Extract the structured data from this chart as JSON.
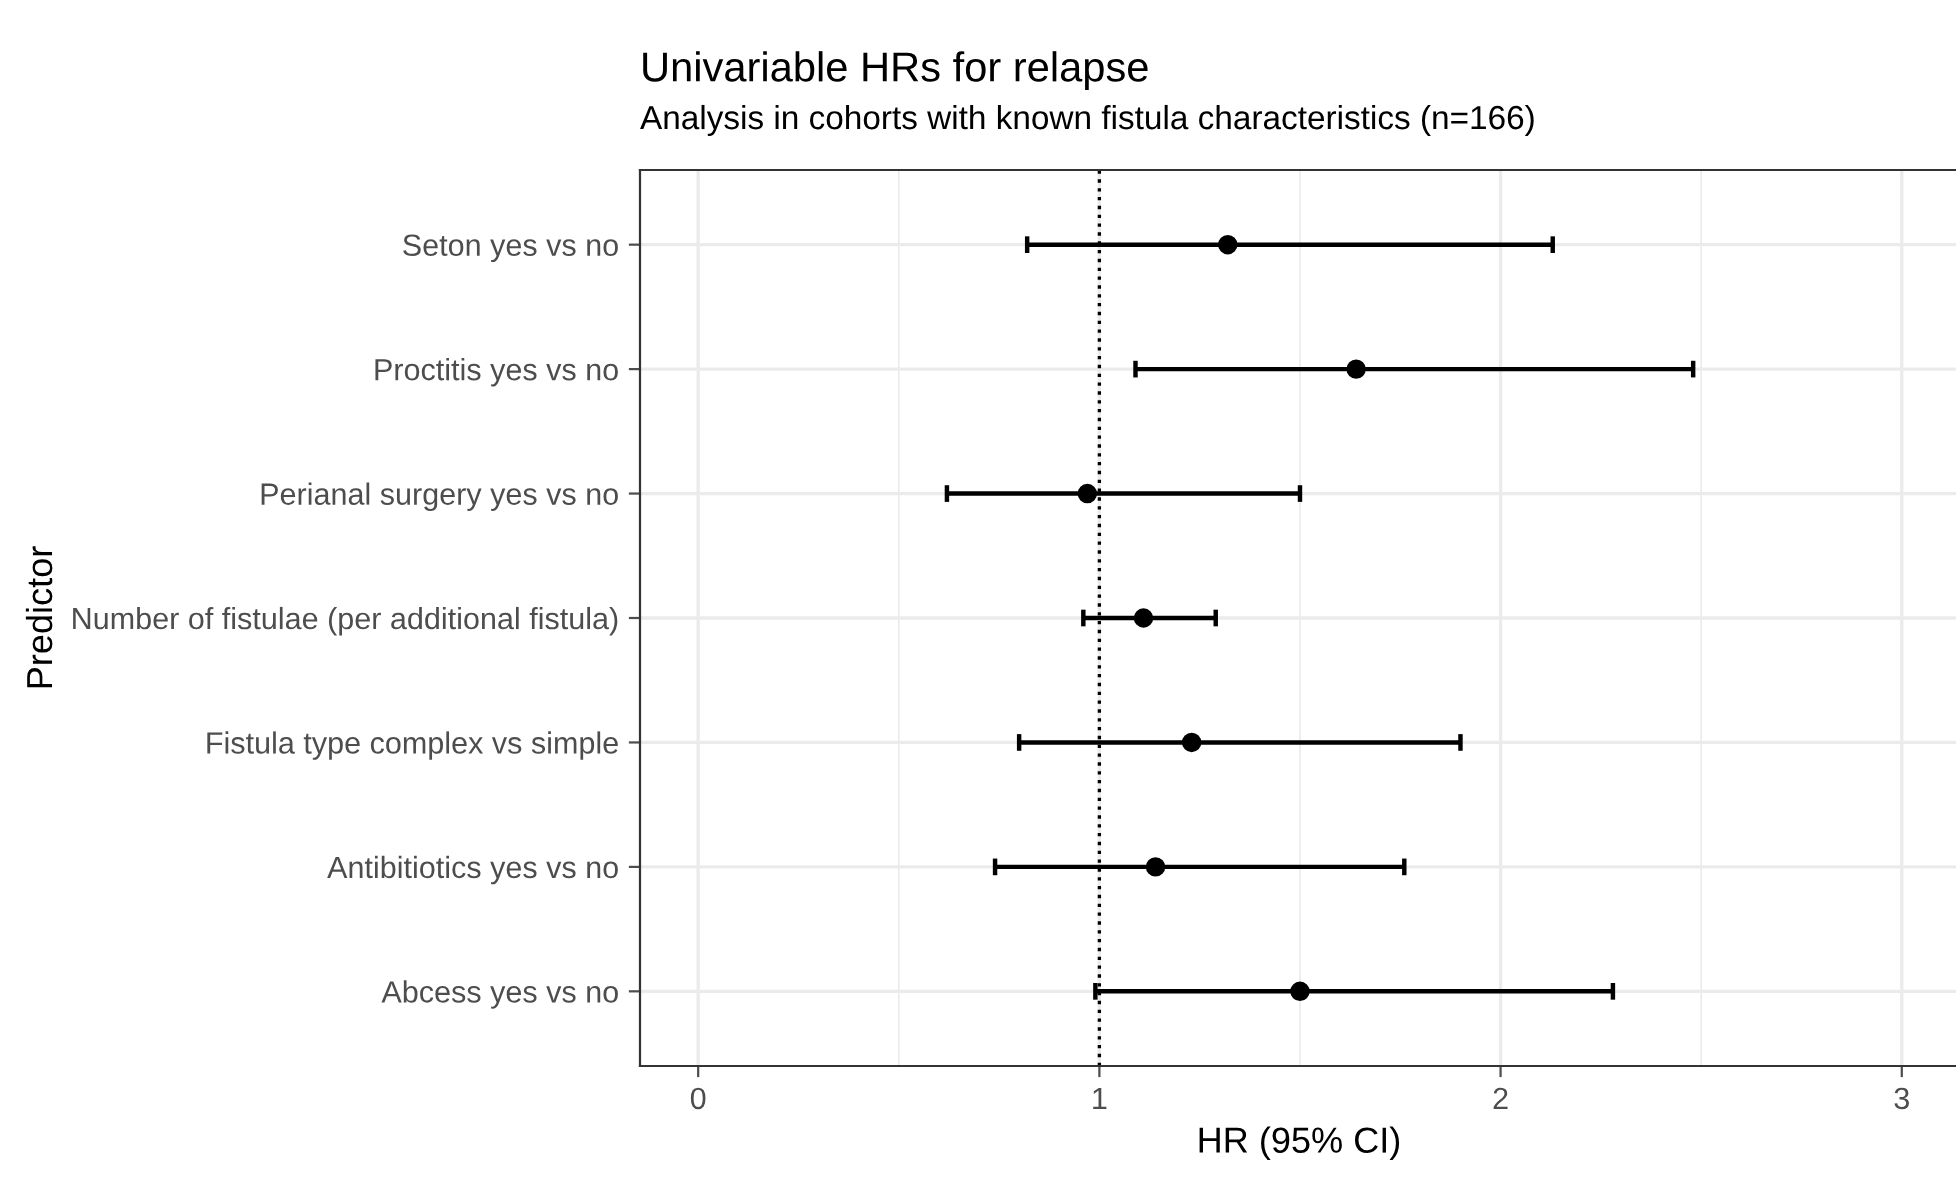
{
  "chart_data": {
    "type": "scatter",
    "title": "Univariable HRs for relapse",
    "subtitle": "Analysis in cohorts with known fistula characteristics (n=166)",
    "xlabel": "HR (95% CI)",
    "ylabel": "Predictor",
    "orientation": "horizontal",
    "categories": [
      "Seton yes vs no",
      "Proctitis yes vs no",
      "Perianal surgery yes vs no",
      "Number of fistulae (per additional fistula)",
      "Fistula type complex vs simple",
      "Antibitiotics yes vs no",
      "Abcess yes vs no"
    ],
    "series": [
      {
        "color": "#000000",
        "values": [
          1.32,
          1.64,
          0.97,
          1.11,
          1.23,
          1.14,
          1.5
        ],
        "errors": [
          [
            0.82,
            2.13
          ],
          [
            1.09,
            2.48
          ],
          [
            0.62,
            1.5
          ],
          [
            0.96,
            1.29
          ],
          [
            0.8,
            1.9
          ],
          [
            0.74,
            1.76
          ],
          [
            0.99,
            2.28
          ]
        ]
      }
    ],
    "xlim": [
      -0.145,
      3.14
    ],
    "xticks": [
      0,
      {
        "value": 0.5,
        "label": null
      },
      1,
      {
        "value": 1.5,
        "label": null
      },
      2,
      {
        "value": 2.5,
        "label": null
      },
      3
    ],
    "ref_lines": [
      {
        "axis": "x",
        "value": 1,
        "color": "#000000",
        "line_style": "dotted"
      }
    ],
    "grid": true,
    "marker": "circle"
  }
}
